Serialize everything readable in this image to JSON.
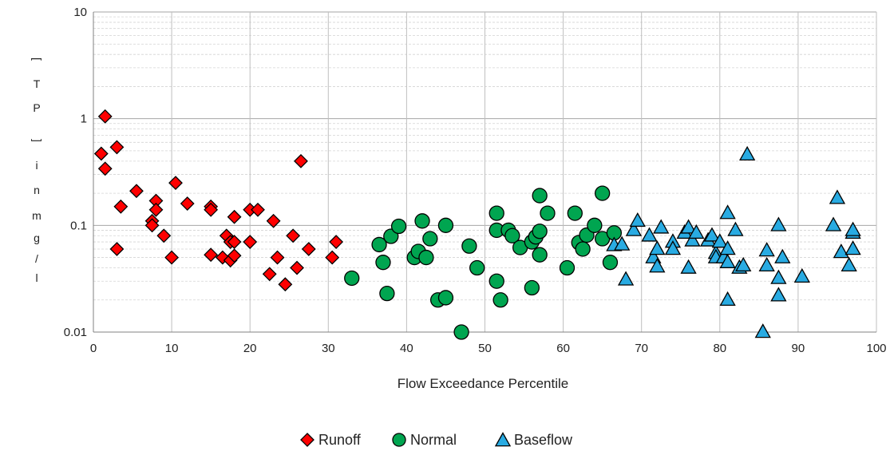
{
  "chart_data": {
    "type": "scatter",
    "xlabel": "Flow Exceedance Percentile",
    "ylabel": "TP [] in mg/l",
    "ylabel_chars": [
      "T",
      "P",
      "]",
      "i",
      "n",
      "m",
      "g",
      "/",
      "l"
    ],
    "ylabel_open_bracket": "[",
    "xlim": [
      0,
      100
    ],
    "ylim": [
      0.01,
      10
    ],
    "yscale": "log",
    "x_ticks": [
      "0",
      "10",
      "20",
      "30",
      "40",
      "50",
      "60",
      "70",
      "80",
      "90",
      "100"
    ],
    "y_ticks": [
      "0.01",
      "0.1",
      "1",
      "10"
    ],
    "grid": true,
    "legend_position": "bottom",
    "series": [
      {
        "name": "Runoff",
        "marker": "diamond",
        "color": "#ff0000",
        "points": [
          [
            1.0,
            0.47
          ],
          [
            1.5,
            0.34
          ],
          [
            1.5,
            1.05
          ],
          [
            3.0,
            0.54
          ],
          [
            3.0,
            0.06
          ],
          [
            3.5,
            0.15
          ],
          [
            5.5,
            0.21
          ],
          [
            7.5,
            0.11
          ],
          [
            7.5,
            0.1
          ],
          [
            8.0,
            0.17
          ],
          [
            8.0,
            0.14
          ],
          [
            9.0,
            0.08
          ],
          [
            10.0,
            0.05
          ],
          [
            10.5,
            0.25
          ],
          [
            12.0,
            0.16
          ],
          [
            15.0,
            0.15
          ],
          [
            15.0,
            0.14
          ],
          [
            15.0,
            0.053
          ],
          [
            16.5,
            0.05
          ],
          [
            17.0,
            0.08
          ],
          [
            17.5,
            0.07
          ],
          [
            17.5,
            0.047
          ],
          [
            18.0,
            0.12
          ],
          [
            18.0,
            0.07
          ],
          [
            18.0,
            0.052
          ],
          [
            20.0,
            0.07
          ],
          [
            20.0,
            0.14
          ],
          [
            21.0,
            0.14
          ],
          [
            22.5,
            0.035
          ],
          [
            23.0,
            0.11
          ],
          [
            23.5,
            0.05
          ],
          [
            24.5,
            0.028
          ],
          [
            25.5,
            0.08
          ],
          [
            26.0,
            0.04
          ],
          [
            26.5,
            0.4
          ],
          [
            27.5,
            0.06
          ],
          [
            30.5,
            0.05
          ],
          [
            31.0,
            0.07
          ]
        ]
      },
      {
        "name": "Normal",
        "marker": "circle",
        "color": "#00a550",
        "points": [
          [
            33.0,
            0.032
          ],
          [
            36.5,
            0.066
          ],
          [
            37.0,
            0.045
          ],
          [
            37.5,
            0.023
          ],
          [
            38.0,
            0.079
          ],
          [
            39.0,
            0.098
          ],
          [
            41.0,
            0.05
          ],
          [
            41.5,
            0.057
          ],
          [
            42.0,
            0.11
          ],
          [
            42.5,
            0.05
          ],
          [
            43.0,
            0.075
          ],
          [
            44.0,
            0.02
          ],
          [
            45.0,
            0.021
          ],
          [
            45.0,
            0.1
          ],
          [
            47.0,
            0.01
          ],
          [
            48.0,
            0.064
          ],
          [
            49.0,
            0.04
          ],
          [
            51.5,
            0.13
          ],
          [
            51.5,
            0.03
          ],
          [
            51.5,
            0.09
          ],
          [
            52.0,
            0.02
          ],
          [
            53.0,
            0.09
          ],
          [
            53.5,
            0.08
          ],
          [
            54.5,
            0.062
          ],
          [
            56.0,
            0.026
          ],
          [
            56.0,
            0.07
          ],
          [
            56.5,
            0.078
          ],
          [
            57.0,
            0.19
          ],
          [
            57.0,
            0.088
          ],
          [
            57.0,
            0.053
          ],
          [
            58.0,
            0.13
          ],
          [
            60.5,
            0.04
          ],
          [
            61.5,
            0.13
          ],
          [
            62.0,
            0.069
          ],
          [
            62.5,
            0.06
          ],
          [
            63.0,
            0.081
          ],
          [
            64.0,
            0.1
          ],
          [
            65.0,
            0.2
          ],
          [
            65.0,
            0.075
          ],
          [
            66.0,
            0.045
          ],
          [
            66.5,
            0.085
          ]
        ]
      },
      {
        "name": "Baseflow",
        "marker": "triangle",
        "color": "#29abe2",
        "points": [
          [
            66.5,
            0.065
          ],
          [
            67.5,
            0.066
          ],
          [
            68.0,
            0.031
          ],
          [
            69.0,
            0.09
          ],
          [
            69.5,
            0.11
          ],
          [
            71.0,
            0.08
          ],
          [
            71.5,
            0.05
          ],
          [
            72.0,
            0.06
          ],
          [
            72.0,
            0.041
          ],
          [
            72.5,
            0.095
          ],
          [
            74.0,
            0.07
          ],
          [
            74.0,
            0.06
          ],
          [
            75.5,
            0.085
          ],
          [
            76.0,
            0.04
          ],
          [
            76.0,
            0.095
          ],
          [
            76.5,
            0.072
          ],
          [
            77.0,
            0.085
          ],
          [
            78.5,
            0.072
          ],
          [
            79.0,
            0.08
          ],
          [
            79.5,
            0.055
          ],
          [
            79.5,
            0.05
          ],
          [
            80.0,
            0.07
          ],
          [
            80.5,
            0.05
          ],
          [
            81.0,
            0.045
          ],
          [
            81.0,
            0.13
          ],
          [
            81.0,
            0.06
          ],
          [
            81.0,
            0.02
          ],
          [
            82.0,
            0.09
          ],
          [
            82.5,
            0.04
          ],
          [
            83.0,
            0.042
          ],
          [
            83.5,
            0.46
          ],
          [
            85.5,
            0.01
          ],
          [
            86.0,
            0.058
          ],
          [
            86.0,
            0.042
          ],
          [
            87.5,
            0.1
          ],
          [
            87.5,
            0.032
          ],
          [
            87.5,
            0.022
          ],
          [
            88.0,
            0.05
          ],
          [
            90.5,
            0.033
          ],
          [
            94.5,
            0.1
          ],
          [
            95.0,
            0.18
          ],
          [
            95.5,
            0.056
          ],
          [
            96.5,
            0.042
          ],
          [
            97.0,
            0.085
          ],
          [
            97.0,
            0.09
          ],
          [
            97.0,
            0.06
          ]
        ]
      }
    ]
  }
}
